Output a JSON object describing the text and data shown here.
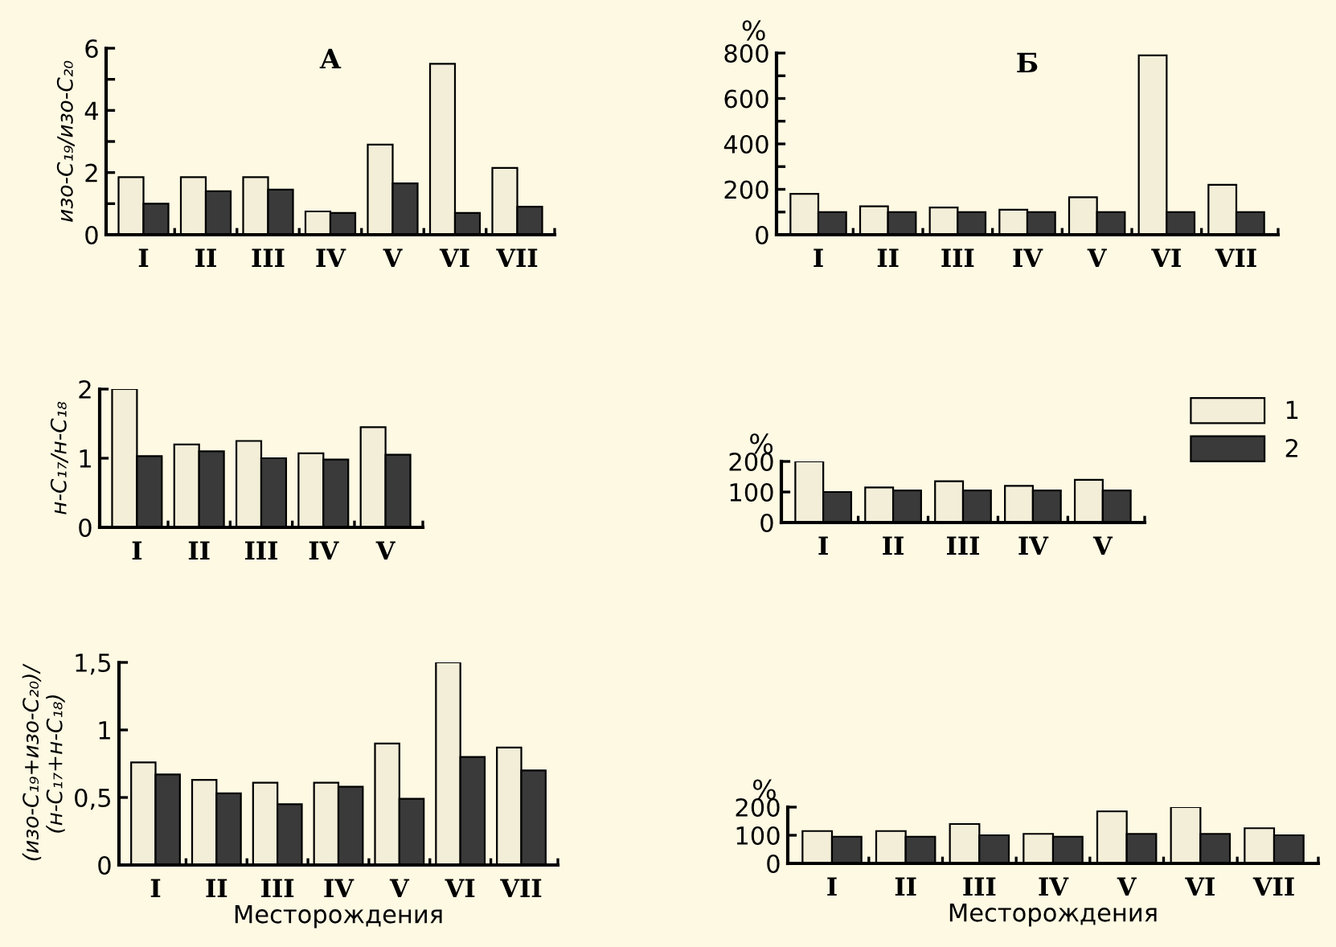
{
  "chart_data": [
    {
      "type": "bar",
      "title": "А",
      "ylabel": "изо-C₁₉/изо-C₂₀",
      "categories": [
        "I",
        "II",
        "III",
        "IV",
        "V",
        "VI",
        "VII"
      ],
      "ylim": [
        0,
        6
      ],
      "yticks": [
        0,
        {
          "value": 1,
          "label": null
        },
        2,
        {
          "value": 3,
          "label": null
        },
        4,
        {
          "value": 5,
          "label": null
        },
        6
      ],
      "grid": false,
      "legend": false,
      "series": [
        {
          "color": "#f3eed8",
          "values": [
            1.85,
            1.85,
            1.85,
            0.75,
            2.9,
            5.5,
            2.15
          ]
        },
        {
          "color": "#3a3a3a",
          "values": [
            1.0,
            1.4,
            1.45,
            0.7,
            1.65,
            0.7,
            0.9
          ]
        }
      ]
    },
    {
      "type": "bar",
      "title": "Б",
      "ylabel": "%",
      "categories": [
        "I",
        "II",
        "III",
        "IV",
        "V",
        "VI",
        "VII"
      ],
      "ylim": [
        0,
        800
      ],
      "yticks": [
        0,
        {
          "value": 100,
          "label": null
        },
        200,
        {
          "value": 300,
          "label": null
        },
        400,
        {
          "value": 500,
          "label": null
        },
        600,
        {
          "value": 700,
          "label": null
        },
        800
      ],
      "grid": false,
      "legend": false,
      "series": [
        {
          "color": "#f3eed8",
          "values": [
            180,
            125,
            120,
            110,
            165,
            790,
            220
          ]
        },
        {
          "color": "#3a3a3a",
          "values": [
            100,
            100,
            100,
            100,
            100,
            100,
            100
          ]
        }
      ]
    },
    {
      "type": "bar",
      "ylabel": "н-C₁₇/н-C₁₈",
      "categories": [
        "I",
        "II",
        "III",
        "IV",
        "V"
      ],
      "ylim": [
        0,
        2
      ],
      "yticks": [
        0,
        1,
        2
      ],
      "grid": false,
      "legend": false,
      "series": [
        {
          "color": "#f3eed8",
          "values": [
            2.0,
            1.2,
            1.25,
            1.07,
            1.45
          ]
        },
        {
          "color": "#3a3a3a",
          "values": [
            1.03,
            1.1,
            1.0,
            0.98,
            1.05
          ]
        }
      ]
    },
    {
      "type": "bar",
      "ylabel": "%",
      "categories": [
        "I",
        "II",
        "III",
        "IV",
        "V"
      ],
      "ylim": [
        0,
        200
      ],
      "yticks": [
        0,
        100,
        200
      ],
      "grid": false,
      "legend": "right",
      "series": [
        {
          "name": "1",
          "color": "#f3eed8",
          "values": [
            200,
            115,
            135,
            120,
            140
          ]
        },
        {
          "name": "2",
          "color": "#3a3a3a",
          "values": [
            100,
            105,
            105,
            105,
            105
          ]
        }
      ]
    },
    {
      "type": "bar",
      "xlabel": "Месторождения",
      "ylabel": "(изо-C₁₉+изо-C₂₀)/\n(н-C₁₇+н-C₁₈)",
      "categories": [
        "I",
        "II",
        "III",
        "IV",
        "V",
        "VI",
        "VII"
      ],
      "ylim": [
        0,
        1.5
      ],
      "yticks": [
        0,
        {
          "value": 0.5,
          "label": "0,5"
        },
        1,
        {
          "value": 1.5,
          "label": "1,5"
        }
      ],
      "grid": false,
      "legend": false,
      "series": [
        {
          "color": "#f3eed8",
          "values": [
            0.76,
            0.63,
            0.61,
            0.61,
            0.9,
            1.5,
            0.87
          ]
        },
        {
          "color": "#3a3a3a",
          "values": [
            0.67,
            0.53,
            0.45,
            0.58,
            0.49,
            0.8,
            0.7
          ]
        }
      ]
    },
    {
      "type": "bar",
      "xlabel": "Месторождения",
      "ylabel": "%",
      "categories": [
        "I",
        "II",
        "III",
        "IV",
        "V",
        "VI",
        "VII"
      ],
      "ylim": [
        0,
        200
      ],
      "yticks": [
        0,
        100,
        200
      ],
      "grid": false,
      "legend": false,
      "series": [
        {
          "color": "#f3eed8",
          "values": [
            115,
            115,
            140,
            105,
            185,
            200,
            125
          ]
        },
        {
          "color": "#3a3a3a",
          "values": [
            95,
            95,
            100,
            95,
            105,
            105,
            100
          ]
        }
      ]
    }
  ]
}
